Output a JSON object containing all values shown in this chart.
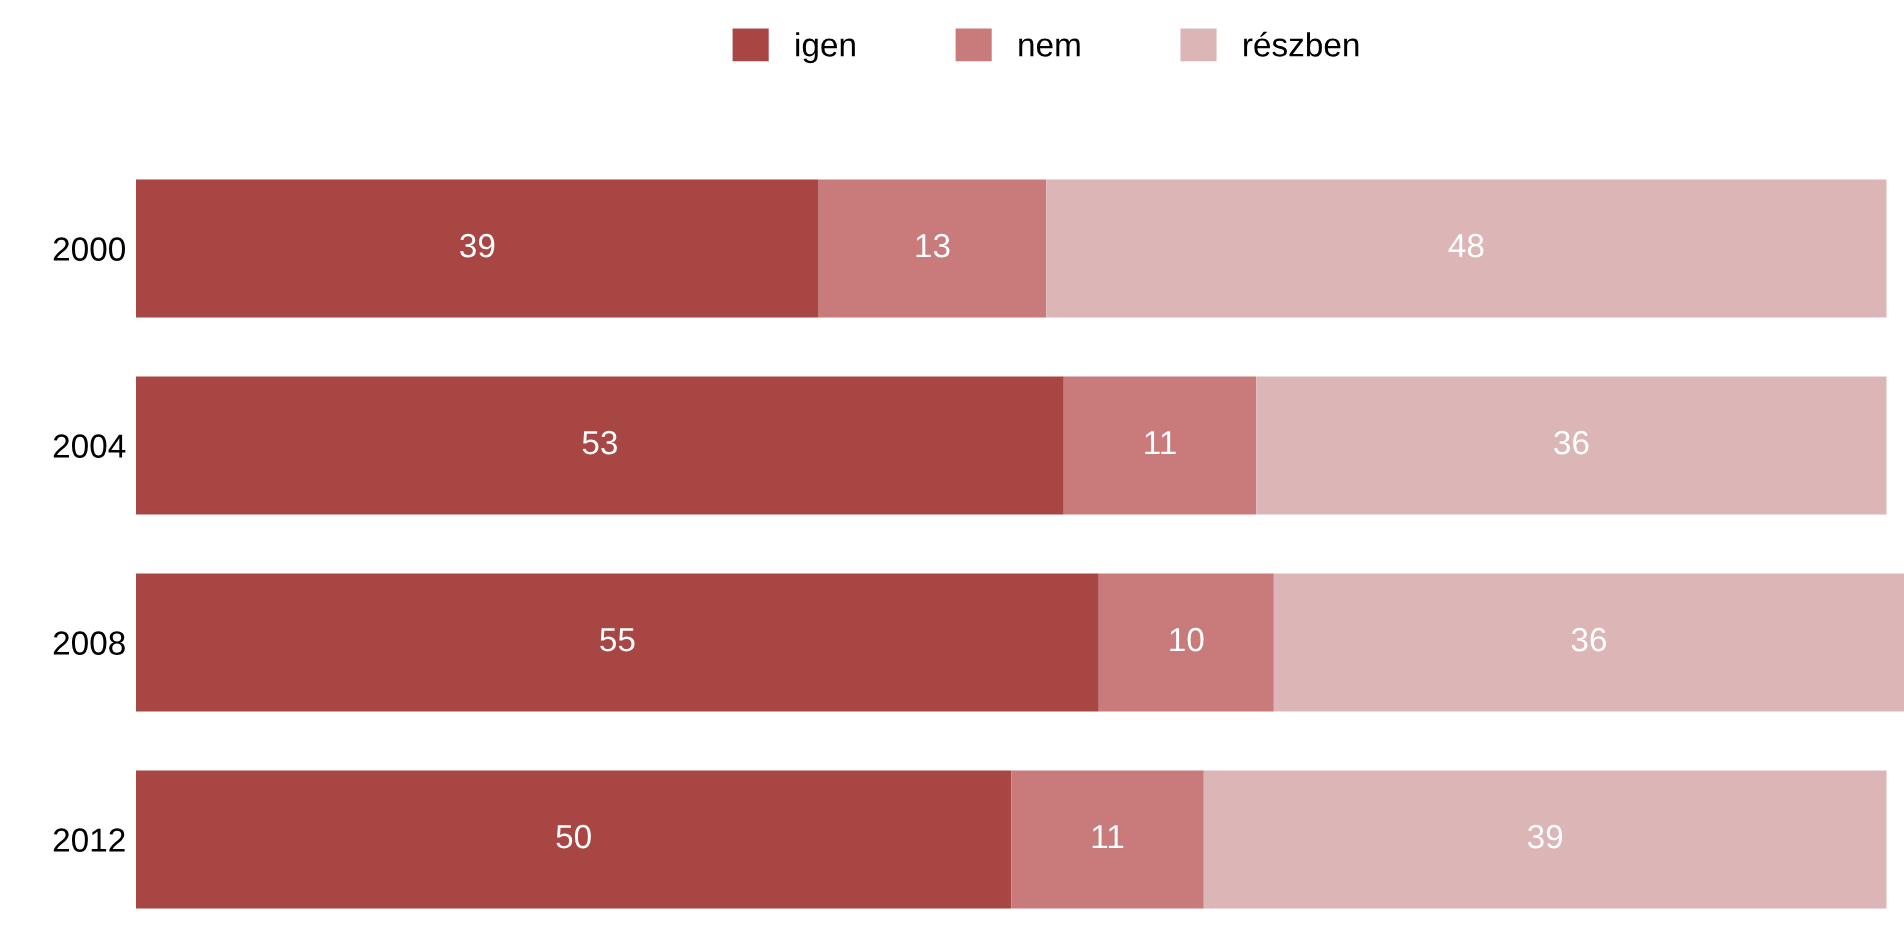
{
  "chart_data": {
    "type": "bar",
    "orientation": "horizontal",
    "stacked": true,
    "categories": [
      "2000",
      "2004",
      "2008",
      "2012"
    ],
    "series": [
      {
        "name": "igen",
        "color": "#a84644",
        "values": [
          39,
          53,
          55,
          50
        ]
      },
      {
        "name": "nem",
        "color": "#c97b7b",
        "values": [
          13,
          11,
          10,
          11
        ]
      },
      {
        "name": "részben",
        "color": "#dcb6b6",
        "values": [
          48,
          36,
          36,
          39
        ]
      }
    ],
    "data_labels": true,
    "legend": "top",
    "grid": false,
    "tick_labels": "y"
  }
}
